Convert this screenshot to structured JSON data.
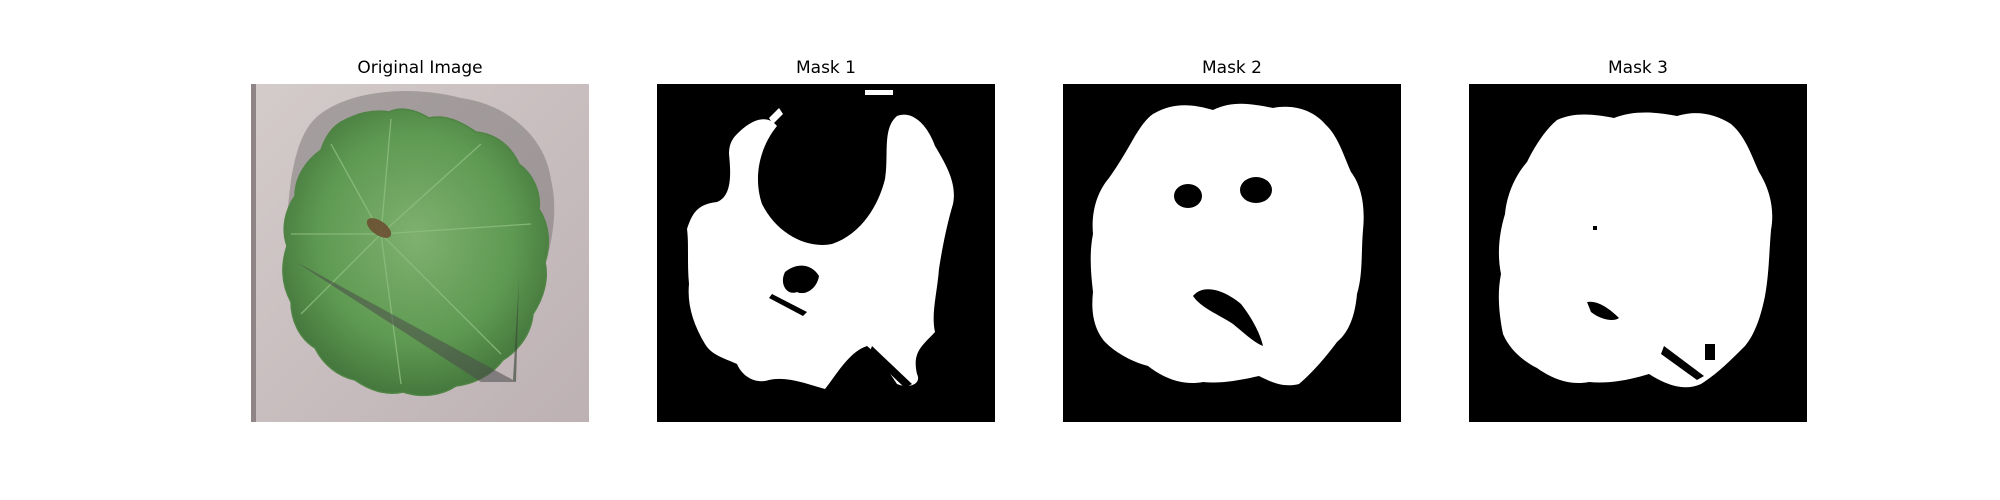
{
  "figure": {
    "panels": [
      {
        "title": "Original Image",
        "kind": "photo"
      },
      {
        "title": "Mask 1",
        "kind": "binary-mask"
      },
      {
        "title": "Mask 2",
        "kind": "binary-mask"
      },
      {
        "title": "Mask 3",
        "kind": "binary-mask"
      }
    ]
  },
  "colors": {
    "background": "#ffffff",
    "mask_background": "#000000",
    "mask_foreground": "#ffffff",
    "leaf_green": "#5f9a52",
    "leaf_dark": "#3f6f38",
    "photo_background": "#c8bcbc",
    "shadow": "#4b4b4b"
  }
}
